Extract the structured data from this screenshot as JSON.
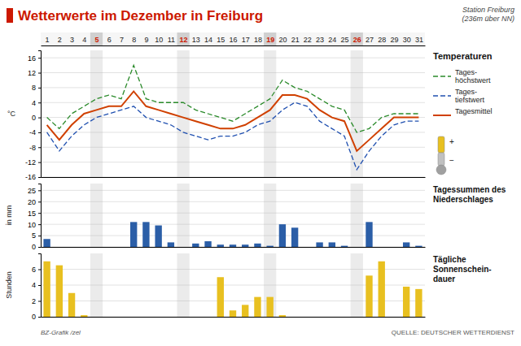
{
  "chart_data": [
    {
      "type": "line",
      "title": "Wetterwerte im Dezember in Freiburg",
      "subtitle": "Station Freiburg\n(236m über NN)",
      "x": [
        1,
        2,
        3,
        4,
        5,
        6,
        7,
        8,
        9,
        10,
        11,
        12,
        13,
        14,
        15,
        16,
        17,
        18,
        19,
        20,
        21,
        22,
        23,
        24,
        25,
        26,
        27,
        28,
        29,
        30,
        31
      ],
      "xlim": [
        0.5,
        31.5
      ],
      "xticks": [
        1,
        2,
        3,
        4,
        5,
        6,
        7,
        8,
        9,
        10,
        11,
        12,
        13,
        14,
        15,
        16,
        17,
        18,
        19,
        20,
        21,
        22,
        23,
        24,
        25,
        26,
        27,
        28,
        29,
        30,
        31
      ],
      "highlighted_days": [
        5,
        12,
        19,
        26
      ],
      "series": [
        {
          "name": "Tages-\nhöchstwert",
          "color": "#2a8a2a",
          "line_style": "dashed",
          "values": [
            0,
            -3,
            1,
            3,
            5,
            6,
            5,
            14,
            5,
            4,
            4,
            4,
            2,
            1,
            0,
            -1,
            1,
            3,
            5,
            10,
            8,
            7,
            5,
            3,
            2,
            -4,
            -3,
            0,
            1,
            1,
            1
          ]
        },
        {
          "name": "Tages-\ntiefstwert",
          "color": "#2050b0",
          "line_style": "dashed",
          "values": [
            -4,
            -9,
            -5,
            -2,
            0,
            1,
            2,
            3,
            0,
            -1,
            -2,
            -4,
            -5,
            -6,
            -5,
            -5,
            -4,
            -2,
            -1,
            2,
            4,
            3,
            -1,
            -3,
            -5,
            -14,
            -9,
            -5,
            -2,
            -1,
            -1
          ]
        },
        {
          "name": "Tagesmittel",
          "color": "#d04000",
          "line_style": "solid",
          "values": [
            -2,
            -6,
            -2,
            1,
            2,
            3,
            3,
            7,
            3,
            2,
            1,
            0,
            -1,
            -2,
            -3,
            -3,
            -2,
            0,
            2,
            6,
            6,
            5,
            2,
            0,
            -1,
            -9,
            -6,
            -3,
            0,
            0,
            0
          ]
        }
      ],
      "ylim": [
        -16,
        18
      ],
      "yticks": [
        -16,
        -12,
        -8,
        -4,
        0,
        4,
        8,
        12,
        16
      ],
      "ylabel": "°C",
      "grid": true,
      "legend": "right",
      "annotations": [
        "Temperaturen",
        "+",
        "−"
      ]
    },
    {
      "type": "bar",
      "x": [
        1,
        2,
        3,
        4,
        5,
        6,
        7,
        8,
        9,
        10,
        11,
        12,
        13,
        14,
        15,
        16,
        17,
        18,
        19,
        20,
        21,
        22,
        23,
        24,
        25,
        26,
        27,
        28,
        29,
        30,
        31
      ],
      "xlim": [
        0.5,
        31.5
      ],
      "values": [
        3.5,
        0,
        0,
        0,
        0,
        0,
        0,
        11,
        11,
        9.5,
        2,
        0,
        1.5,
        2.5,
        1,
        1,
        1,
        1.5,
        0.5,
        10,
        8.5,
        0,
        2,
        2,
        0.5,
        0,
        11,
        0,
        0,
        2,
        0.5
      ],
      "color": "#2b5ea7",
      "ylim": [
        0,
        28
      ],
      "yticks": [
        0,
        5,
        10,
        15,
        20,
        25
      ],
      "ylabel": "in mm",
      "grid": true,
      "tick_labels": "y",
      "annotations": [
        "Tagessummen des\nNiederschlages"
      ]
    },
    {
      "type": "bar",
      "x": [
        1,
        2,
        3,
        4,
        5,
        6,
        7,
        8,
        9,
        10,
        11,
        12,
        13,
        14,
        15,
        16,
        17,
        18,
        19,
        20,
        21,
        22,
        23,
        24,
        25,
        26,
        27,
        28,
        29,
        30,
        31
      ],
      "xlim": [
        0.5,
        31.5
      ],
      "values": [
        7,
        6.5,
        3,
        0.2,
        0,
        0,
        0,
        0,
        0,
        0,
        0,
        0,
        0,
        0,
        5,
        0.8,
        1.5,
        2.5,
        2.5,
        0.2,
        0,
        0,
        0,
        0,
        0,
        0,
        5.2,
        7,
        0,
        3.8,
        3.5
      ],
      "color": "#e8c020",
      "ylim": [
        0,
        8
      ],
      "yticks": [
        0,
        2,
        4,
        6
      ],
      "ylabel": "Stunden",
      "grid": true,
      "tick_labels": "y",
      "annotations": [
        "Tägliche\nSonnenschein-\ndauer",
        "BZ-Grafik /zel",
        "QUELLE: DEUTSCHER WETTERDIENST"
      ]
    }
  ]
}
